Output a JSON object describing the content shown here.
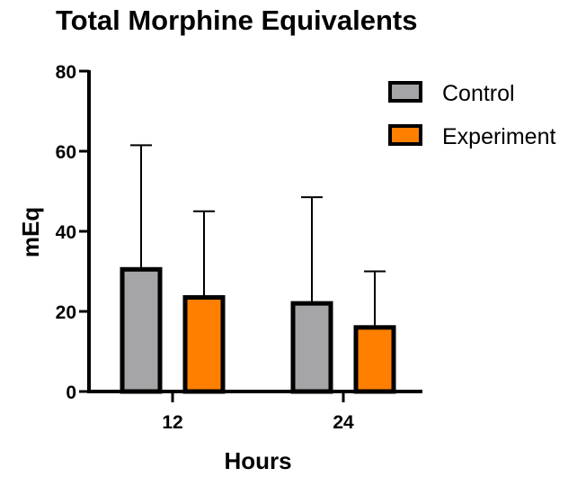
{
  "chart_data": {
    "type": "bar",
    "title": "Total Morphine Equivalents",
    "xlabel": "Hours",
    "ylabel": "mEq",
    "categories": [
      "12",
      "24"
    ],
    "series": [
      {
        "name": "Control",
        "values": [
          30.5,
          22
        ],
        "error_upper": [
          61.5,
          48.5
        ],
        "color": "#a5a5a8"
      },
      {
        "name": "Experiment",
        "values": [
          23.5,
          16
        ],
        "error_upper": [
          45,
          30
        ],
        "color": "#ff8000"
      }
    ],
    "ylim": [
      0,
      80
    ],
    "yticks": [
      0,
      20,
      40,
      60,
      80
    ],
    "grid": false,
    "legend_position": "top-right"
  }
}
